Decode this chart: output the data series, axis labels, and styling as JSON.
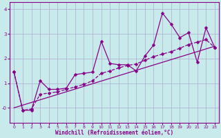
{
  "xlabel": "Windchill (Refroidissement éolien,°C)",
  "bg_color": "#c8eaea",
  "line_color": "#880088",
  "grid_color": "#aaaacc",
  "xlim": [
    -0.5,
    23.5
  ],
  "ylim": [
    -0.6,
    4.3
  ],
  "xticks": [
    0,
    1,
    2,
    3,
    4,
    5,
    6,
    7,
    8,
    9,
    10,
    11,
    12,
    13,
    14,
    15,
    16,
    17,
    18,
    19,
    20,
    21,
    22,
    23
  ],
  "yticks": [
    0,
    1,
    2,
    3,
    4
  ],
  "ytick_labels": [
    "-0",
    "1",
    "2",
    "3",
    "4"
  ],
  "line1_x": [
    0,
    1,
    2,
    3,
    4,
    5,
    6,
    7,
    8,
    9,
    10,
    11,
    12,
    13,
    14,
    15,
    16,
    17,
    18,
    19,
    20,
    21,
    22,
    23
  ],
  "line1_y": [
    1.45,
    -0.1,
    -0.1,
    1.1,
    0.75,
    0.75,
    0.8,
    1.35,
    1.4,
    1.45,
    2.7,
    1.8,
    1.75,
    1.75,
    1.5,
    2.1,
    2.55,
    3.85,
    3.4,
    2.85,
    3.05,
    1.85,
    3.25,
    2.45
  ],
  "line2_x": [
    0,
    1,
    2,
    3,
    4,
    5,
    6,
    7,
    8,
    9,
    10,
    11,
    12,
    13,
    14,
    15,
    16,
    17,
    18,
    19,
    20,
    21,
    22,
    23
  ],
  "line2_y": [
    1.45,
    -0.1,
    -0.05,
    0.55,
    0.6,
    0.65,
    0.75,
    0.85,
    0.95,
    1.1,
    1.4,
    1.5,
    1.62,
    1.72,
    1.78,
    1.93,
    2.08,
    2.18,
    2.28,
    2.42,
    2.57,
    2.67,
    2.77,
    2.45
  ],
  "line3_x": [
    0,
    23
  ],
  "line3_y": [
    0.0,
    2.5
  ]
}
